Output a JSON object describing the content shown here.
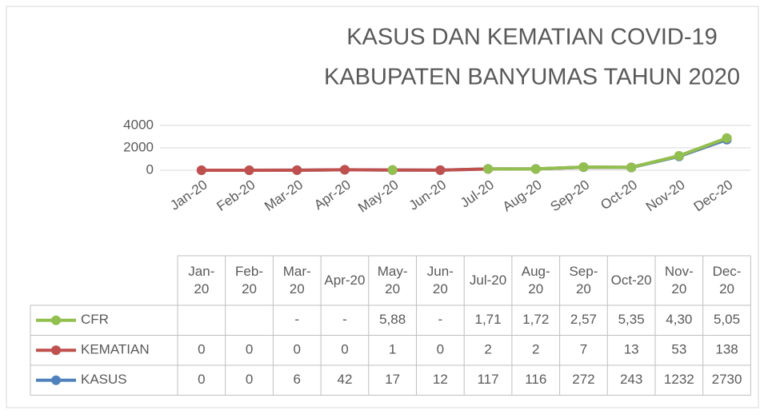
{
  "chart_data": {
    "type": "line",
    "stacked": true,
    "title": [
      "KASUS DAN KEMATIAN COVID-19",
      "KABUPATEN BANYUMAS TAHUN 2020"
    ],
    "categories": [
      "Jan-20",
      "Feb-20",
      "Mar-20",
      "Apr-20",
      "May-20",
      "Jun-20",
      "Jul-20",
      "Aug-20",
      "Sep-20",
      "Oct-20",
      "Nov-20",
      "Dec-20"
    ],
    "series": [
      {
        "name": "CFR",
        "color": "#92c050",
        "values": [
          null,
          null,
          null,
          null,
          5.88,
          null,
          1.71,
          1.72,
          2.57,
          5.35,
          4.3,
          5.05
        ],
        "value_labels": [
          null,
          null,
          "-",
          "-",
          "5,88",
          "-",
          "1,71",
          "1,72",
          "2,57",
          "5,35",
          "4,30",
          "5,05"
        ]
      },
      {
        "name": "KEMATIAN",
        "color": "#c0504d",
        "values": [
          0,
          0,
          0,
          0,
          1,
          0,
          2,
          2,
          7,
          13,
          53,
          138
        ]
      },
      {
        "name": "KASUS",
        "color": "#4f81bd",
        "values": [
          0,
          0,
          6,
          42,
          17,
          12,
          117,
          116,
          272,
          243,
          1232,
          2730
        ]
      }
    ],
    "ylim": [
      0,
      4000
    ],
    "yticks": [
      0,
      2000,
      4000
    ],
    "grid": true,
    "data_table": true
  }
}
